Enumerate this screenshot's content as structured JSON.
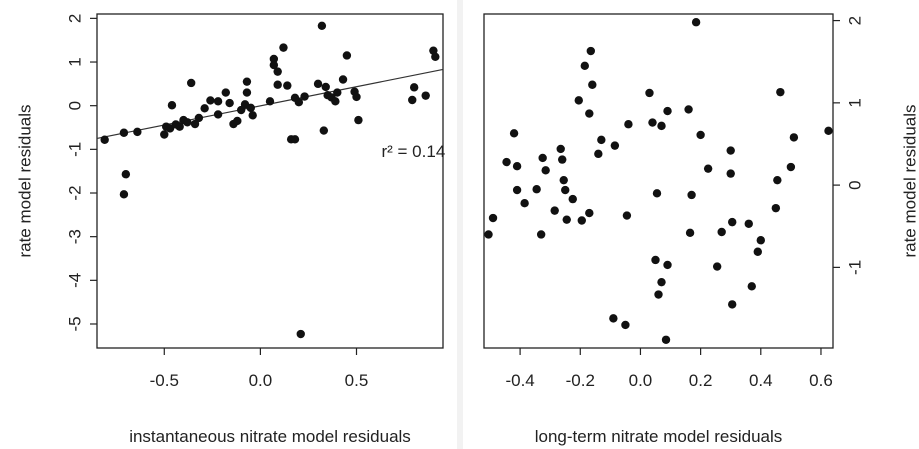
{
  "chart_data": [
    {
      "type": "scatter",
      "title": "",
      "xlabel": "instantaneous nitrate model residuals",
      "ylabel": "rate model residuals",
      "xlim": [
        -0.85,
        0.95
      ],
      "ylim": [
        -5.55,
        2.1
      ],
      "xticks": [
        -0.5,
        0.0,
        0.5
      ],
      "xtick_labels": [
        "-0.5",
        "0.0",
        "0.5"
      ],
      "yticks": [
        -5,
        -4,
        -3,
        -2,
        -1,
        0,
        1,
        2
      ],
      "ytick_labels": [
        "-5",
        "-4",
        "-3",
        "-2",
        "-1",
        "0",
        "1",
        "2"
      ],
      "yaxis_side": "left",
      "grid": false,
      "fit_line": {
        "x": [
          -0.85,
          0.95
        ],
        "y": [
          -0.75,
          0.83
        ]
      },
      "annotation": {
        "text": "r² = 0.14",
        "x": 0.63,
        "y": -1.17
      },
      "points": [
        {
          "x": -0.81,
          "y": -0.78
        },
        {
          "x": -0.71,
          "y": -0.62
        },
        {
          "x": -0.71,
          "y": -2.03
        },
        {
          "x": -0.7,
          "y": -1.57
        },
        {
          "x": -0.64,
          "y": -0.6
        },
        {
          "x": -0.5,
          "y": -0.66
        },
        {
          "x": -0.49,
          "y": -0.48
        },
        {
          "x": -0.47,
          "y": -0.52
        },
        {
          "x": -0.46,
          "y": 0.01
        },
        {
          "x": -0.44,
          "y": -0.43
        },
        {
          "x": -0.42,
          "y": -0.48
        },
        {
          "x": -0.4,
          "y": -0.33
        },
        {
          "x": -0.38,
          "y": -0.38
        },
        {
          "x": -0.36,
          "y": 0.52
        },
        {
          "x": -0.34,
          "y": -0.42
        },
        {
          "x": -0.32,
          "y": -0.28
        },
        {
          "x": -0.29,
          "y": -0.06
        },
        {
          "x": -0.26,
          "y": 0.12
        },
        {
          "x": -0.22,
          "y": 0.1
        },
        {
          "x": -0.22,
          "y": -0.2
        },
        {
          "x": -0.18,
          "y": 0.3
        },
        {
          "x": -0.16,
          "y": 0.06
        },
        {
          "x": -0.14,
          "y": -0.42
        },
        {
          "x": -0.12,
          "y": -0.35
        },
        {
          "x": -0.1,
          "y": -0.1
        },
        {
          "x": -0.08,
          "y": 0.03
        },
        {
          "x": -0.07,
          "y": 0.55
        },
        {
          "x": -0.07,
          "y": 0.3
        },
        {
          "x": -0.05,
          "y": -0.05
        },
        {
          "x": -0.04,
          "y": -0.22
        },
        {
          "x": 0.05,
          "y": 0.1
        },
        {
          "x": 0.07,
          "y": 1.07
        },
        {
          "x": 0.07,
          "y": 0.93
        },
        {
          "x": 0.09,
          "y": 0.48
        },
        {
          "x": 0.09,
          "y": 0.78
        },
        {
          "x": 0.12,
          "y": 1.33
        },
        {
          "x": 0.14,
          "y": 0.46
        },
        {
          "x": 0.16,
          "y": -0.77
        },
        {
          "x": 0.18,
          "y": -0.77
        },
        {
          "x": 0.18,
          "y": 0.18
        },
        {
          "x": 0.2,
          "y": 0.08
        },
        {
          "x": 0.21,
          "y": -5.23
        },
        {
          "x": 0.23,
          "y": 0.21
        },
        {
          "x": 0.3,
          "y": 0.5
        },
        {
          "x": 0.32,
          "y": 1.83
        },
        {
          "x": 0.33,
          "y": -0.57
        },
        {
          "x": 0.34,
          "y": 0.43
        },
        {
          "x": 0.35,
          "y": 0.24
        },
        {
          "x": 0.37,
          "y": 0.19
        },
        {
          "x": 0.39,
          "y": 0.1
        },
        {
          "x": 0.4,
          "y": 0.3
        },
        {
          "x": 0.43,
          "y": 0.6
        },
        {
          "x": 0.45,
          "y": 1.15
        },
        {
          "x": 0.49,
          "y": 0.32
        },
        {
          "x": 0.5,
          "y": 0.2
        },
        {
          "x": 0.51,
          "y": -0.33
        },
        {
          "x": 0.79,
          "y": 0.13
        },
        {
          "x": 0.8,
          "y": 0.42
        },
        {
          "x": 0.86,
          "y": 0.23
        },
        {
          "x": 0.9,
          "y": 1.26
        },
        {
          "x": 0.91,
          "y": 1.12
        }
      ]
    },
    {
      "type": "scatter",
      "title": "",
      "xlabel": "long-term nitrate model residuals",
      "ylabel": "rate model residuals",
      "xlim": [
        -0.52,
        0.64
      ],
      "ylim": [
        -1.98,
        2.08
      ],
      "xticks": [
        -0.4,
        -0.2,
        0.0,
        0.2,
        0.4,
        0.6
      ],
      "xtick_labels": [
        "-0.4",
        "-0.2",
        "0.0",
        "0.2",
        "0.4",
        "0.6"
      ],
      "yticks": [
        -1,
        0,
        1,
        2
      ],
      "ytick_labels": [
        "-1",
        "0",
        "1",
        "2"
      ],
      "yaxis_side": "right",
      "grid": false,
      "points": [
        {
          "x": -0.505,
          "y": -0.6
        },
        {
          "x": -0.49,
          "y": -0.4
        },
        {
          "x": -0.445,
          "y": 0.28
        },
        {
          "x": -0.42,
          "y": 0.63
        },
        {
          "x": -0.41,
          "y": 0.23
        },
        {
          "x": -0.41,
          "y": -0.06
        },
        {
          "x": -0.385,
          "y": -0.22
        },
        {
          "x": -0.345,
          "y": -0.05
        },
        {
          "x": -0.33,
          "y": -0.6
        },
        {
          "x": -0.325,
          "y": 0.33
        },
        {
          "x": -0.315,
          "y": 0.18
        },
        {
          "x": -0.285,
          "y": -0.31
        },
        {
          "x": -0.265,
          "y": 0.44
        },
        {
          "x": -0.26,
          "y": 0.31
        },
        {
          "x": -0.255,
          "y": 0.06
        },
        {
          "x": -0.25,
          "y": -0.06
        },
        {
          "x": -0.245,
          "y": -0.42
        },
        {
          "x": -0.225,
          "y": -0.17
        },
        {
          "x": -0.205,
          "y": 1.03
        },
        {
          "x": -0.195,
          "y": -0.43
        },
        {
          "x": -0.185,
          "y": 1.45
        },
        {
          "x": -0.17,
          "y": 0.87
        },
        {
          "x": -0.17,
          "y": -0.34
        },
        {
          "x": -0.165,
          "y": 1.63
        },
        {
          "x": -0.16,
          "y": 1.22
        },
        {
          "x": -0.14,
          "y": 0.38
        },
        {
          "x": -0.13,
          "y": 0.55
        },
        {
          "x": -0.09,
          "y": -1.62
        },
        {
          "x": -0.085,
          "y": 0.48
        },
        {
          "x": -0.05,
          "y": -1.7
        },
        {
          "x": -0.045,
          "y": -0.37
        },
        {
          "x": -0.04,
          "y": 0.74
        },
        {
          "x": 0.03,
          "y": 1.12
        },
        {
          "x": 0.04,
          "y": 0.76
        },
        {
          "x": 0.05,
          "y": -0.91
        },
        {
          "x": 0.055,
          "y": -0.1
        },
        {
          "x": 0.06,
          "y": -1.33
        },
        {
          "x": 0.07,
          "y": 0.72
        },
        {
          "x": 0.07,
          "y": -1.18
        },
        {
          "x": 0.085,
          "y": -1.88
        },
        {
          "x": 0.09,
          "y": 0.9
        },
        {
          "x": 0.09,
          "y": -0.97
        },
        {
          "x": 0.16,
          "y": 0.92
        },
        {
          "x": 0.165,
          "y": -0.58
        },
        {
          "x": 0.17,
          "y": -0.12
        },
        {
          "x": 0.185,
          "y": 1.98
        },
        {
          "x": 0.2,
          "y": 0.61
        },
        {
          "x": 0.225,
          "y": 0.2
        },
        {
          "x": 0.255,
          "y": -0.99
        },
        {
          "x": 0.27,
          "y": -0.57
        },
        {
          "x": 0.3,
          "y": 0.42
        },
        {
          "x": 0.3,
          "y": 0.14
        },
        {
          "x": 0.305,
          "y": -1.45
        },
        {
          "x": 0.305,
          "y": -0.45
        },
        {
          "x": 0.36,
          "y": -0.47
        },
        {
          "x": 0.37,
          "y": -1.23
        },
        {
          "x": 0.39,
          "y": -0.81
        },
        {
          "x": 0.4,
          "y": -0.67
        },
        {
          "x": 0.45,
          "y": -0.28
        },
        {
          "x": 0.455,
          "y": 0.06
        },
        {
          "x": 0.465,
          "y": 1.13
        },
        {
          "x": 0.5,
          "y": 0.22
        },
        {
          "x": 0.51,
          "y": 0.58
        },
        {
          "x": 0.625,
          "y": 0.66
        }
      ]
    }
  ]
}
